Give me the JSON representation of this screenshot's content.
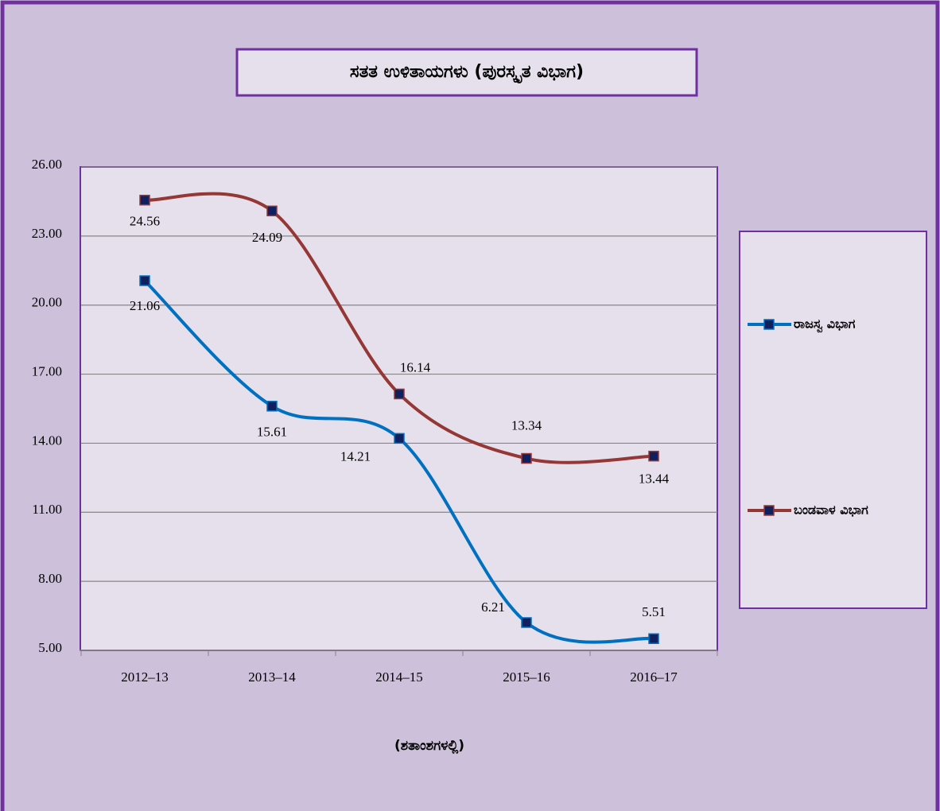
{
  "chart_data": {
    "type": "line",
    "title": "ಸತತ ಉಳಿತಾಯಗಳು (ಪುರಸ್ಕೃತ ವಿಭಾಗ)",
    "x_label": "(ಶತಾಂಶಗಳಲ್ಲಿ)",
    "categories": [
      "2012–13",
      "2013–14",
      "2014–15",
      "2015–16",
      "2016–17"
    ],
    "series": [
      {
        "name": "ರಾಜಸ್ವ ವಿಭಾಗ",
        "color": "#0070c0",
        "values": [
          21.06,
          15.61,
          14.21,
          6.21,
          5.51
        ]
      },
      {
        "name": "ಬಂಡವಾಳ ವಿಭಾಗ",
        "color": "#953735",
        "values": [
          24.56,
          24.09,
          16.14,
          13.34,
          13.44
        ]
      }
    ],
    "ylim": [
      5,
      26
    ],
    "yticks": [
      {
        "value": 5,
        "label": "5.00"
      },
      {
        "value": 8,
        "label": "8.00"
      },
      {
        "value": 11,
        "label": "11.00"
      },
      {
        "value": 14,
        "label": "14.00"
      },
      {
        "value": 17,
        "label": "17.00"
      },
      {
        "value": 20,
        "label": "20.00"
      },
      {
        "value": 23,
        "label": "23.00"
      },
      {
        "value": 26,
        "label": "26.00"
      }
    ],
    "grid": true,
    "smooth": true,
    "legend": "right"
  }
}
